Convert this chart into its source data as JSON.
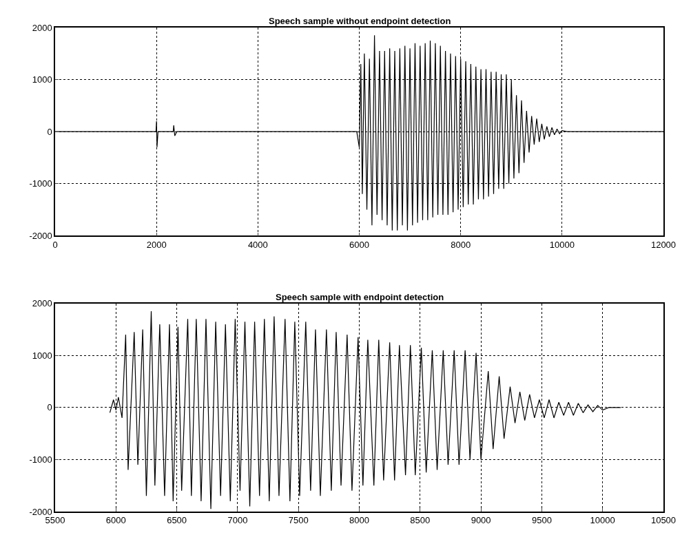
{
  "chart_data": [
    {
      "type": "line",
      "title": "Speech sample without endpoint detection",
      "xlim": [
        0,
        12000
      ],
      "ylim": [
        -2000,
        2000
      ],
      "xticks": [
        0,
        2000,
        4000,
        6000,
        8000,
        10000,
        12000
      ],
      "yticks": [
        -2000,
        -1000,
        0,
        1000,
        2000
      ],
      "grid": true,
      "line_style": "solid",
      "marker": "none",
      "series": [
        {
          "color": "#000000",
          "x": [
            0,
            500,
            1000,
            1500,
            1990,
            2000,
            2010,
            2030,
            2330,
            2340,
            2360,
            2400,
            3000,
            3500,
            4000,
            4500,
            5000,
            5500,
            5950,
            6000,
            6030,
            6060,
            6100,
            6150,
            6200,
            6250,
            6300,
            6350,
            6400,
            6450,
            6500,
            6550,
            6600,
            6650,
            6700,
            6750,
            6800,
            6850,
            6900,
            6950,
            7000,
            7050,
            7100,
            7150,
            7200,
            7250,
            7300,
            7350,
            7400,
            7450,
            7500,
            7550,
            7600,
            7650,
            7700,
            7750,
            7800,
            7850,
            7900,
            7950,
            8000,
            8050,
            8100,
            8150,
            8200,
            8250,
            8300,
            8350,
            8400,
            8450,
            8500,
            8550,
            8600,
            8650,
            8700,
            8750,
            8800,
            8850,
            8900,
            8950,
            9000,
            9050,
            9100,
            9150,
            9200,
            9250,
            9300,
            9350,
            9400,
            9450,
            9500,
            9550,
            9600,
            9650,
            9700,
            9750,
            9800,
            9850,
            9900,
            9950,
            10000,
            10100,
            10500,
            11000,
            11500,
            12000
          ],
          "values": [
            0,
            0,
            0,
            0,
            0,
            200,
            -300,
            0,
            0,
            120,
            -80,
            0,
            0,
            0,
            0,
            0,
            0,
            0,
            0,
            -300,
            1300,
            -1200,
            1500,
            -1500,
            1400,
            -1800,
            1850,
            -1600,
            1550,
            -1700,
            1550,
            -1800,
            1600,
            -1900,
            1550,
            -1900,
            1600,
            -1800,
            1650,
            -1900,
            1600,
            -1800,
            1700,
            -1750,
            1650,
            -1700,
            1700,
            -1700,
            1750,
            -1650,
            1700,
            -1600,
            1650,
            -1600,
            1550,
            -1600,
            1500,
            -1550,
            1450,
            -1500,
            1400,
            -1450,
            1350,
            -1400,
            1300,
            -1400,
            1250,
            -1300,
            1200,
            -1300,
            1200,
            -1250,
            1150,
            -1200,
            1150,
            -1100,
            1100,
            -1100,
            1100,
            -1000,
            1000,
            -900,
            700,
            -800,
            600,
            -600,
            400,
            -400,
            300,
            -250,
            250,
            -200,
            150,
            -150,
            100,
            -100,
            80,
            -60,
            50,
            -40,
            20,
            0,
            0,
            0,
            0,
            0
          ]
        }
      ]
    },
    {
      "type": "line",
      "title": "Speech sample with endpoint detection",
      "xlim": [
        5500,
        10500
      ],
      "ylim": [
        -2000,
        2000
      ],
      "xticks": [
        5500,
        6000,
        6500,
        7000,
        7500,
        8000,
        8500,
        9000,
        9500,
        10000,
        10500
      ],
      "yticks": [
        -2000,
        -1000,
        0,
        1000,
        2000
      ],
      "grid": true,
      "line_style": "solid",
      "marker": "none",
      "series": [
        {
          "color": "#000000",
          "x": [
            5950,
            5980,
            6000,
            6020,
            6050,
            6080,
            6100,
            6150,
            6180,
            6220,
            6250,
            6290,
            6320,
            6360,
            6400,
            6440,
            6470,
            6510,
            6540,
            6590,
            6620,
            6660,
            6700,
            6740,
            6780,
            6820,
            6860,
            6900,
            6940,
            6980,
            7020,
            7060,
            7100,
            7140,
            7180,
            7220,
            7260,
            7300,
            7340,
            7390,
            7430,
            7470,
            7510,
            7560,
            7600,
            7640,
            7680,
            7730,
            7770,
            7810,
            7850,
            7900,
            7940,
            7990,
            8030,
            8070,
            8120,
            8160,
            8200,
            8250,
            8290,
            8330,
            8380,
            8420,
            8460,
            8510,
            8550,
            8600,
            8640,
            8690,
            8730,
            8780,
            8820,
            8870,
            8910,
            8960,
            9000,
            9060,
            9100,
            9150,
            9190,
            9240,
            9280,
            9320,
            9360,
            9400,
            9440,
            9480,
            9520,
            9560,
            9600,
            9640,
            9680,
            9720,
            9760,
            9800,
            9840,
            9880,
            9920,
            9960,
            10000,
            10050,
            10150
          ],
          "values": [
            -100,
            150,
            -50,
            200,
            -200,
            1400,
            -1200,
            1450,
            -1100,
            1500,
            -1700,
            1850,
            -1500,
            1600,
            -1700,
            1600,
            -1800,
            1550,
            -1600,
            1700,
            -1700,
            1700,
            -1800,
            1700,
            -1950,
            1650,
            -1700,
            1600,
            -1800,
            1700,
            -1600,
            1650,
            -1900,
            1650,
            -1700,
            1700,
            -1800,
            1750,
            -1700,
            1700,
            -1800,
            1650,
            -1700,
            1650,
            -1600,
            1500,
            -1700,
            1500,
            -1600,
            1450,
            -1500,
            1400,
            -1600,
            1350,
            -1500,
            1300,
            -1500,
            1300,
            -1400,
            1250,
            -1400,
            1200,
            -1300,
            1200,
            -1300,
            1150,
            -1250,
            1100,
            -1200,
            1100,
            -1100,
            1100,
            -1100,
            1100,
            -1000,
            1050,
            -1000,
            700,
            -800,
            600,
            -600,
            400,
            -300,
            300,
            -250,
            250,
            -200,
            150,
            -200,
            150,
            -200,
            100,
            -150,
            100,
            -150,
            80,
            -100,
            50,
            -80,
            40,
            -50,
            0,
            0
          ]
        }
      ]
    }
  ]
}
